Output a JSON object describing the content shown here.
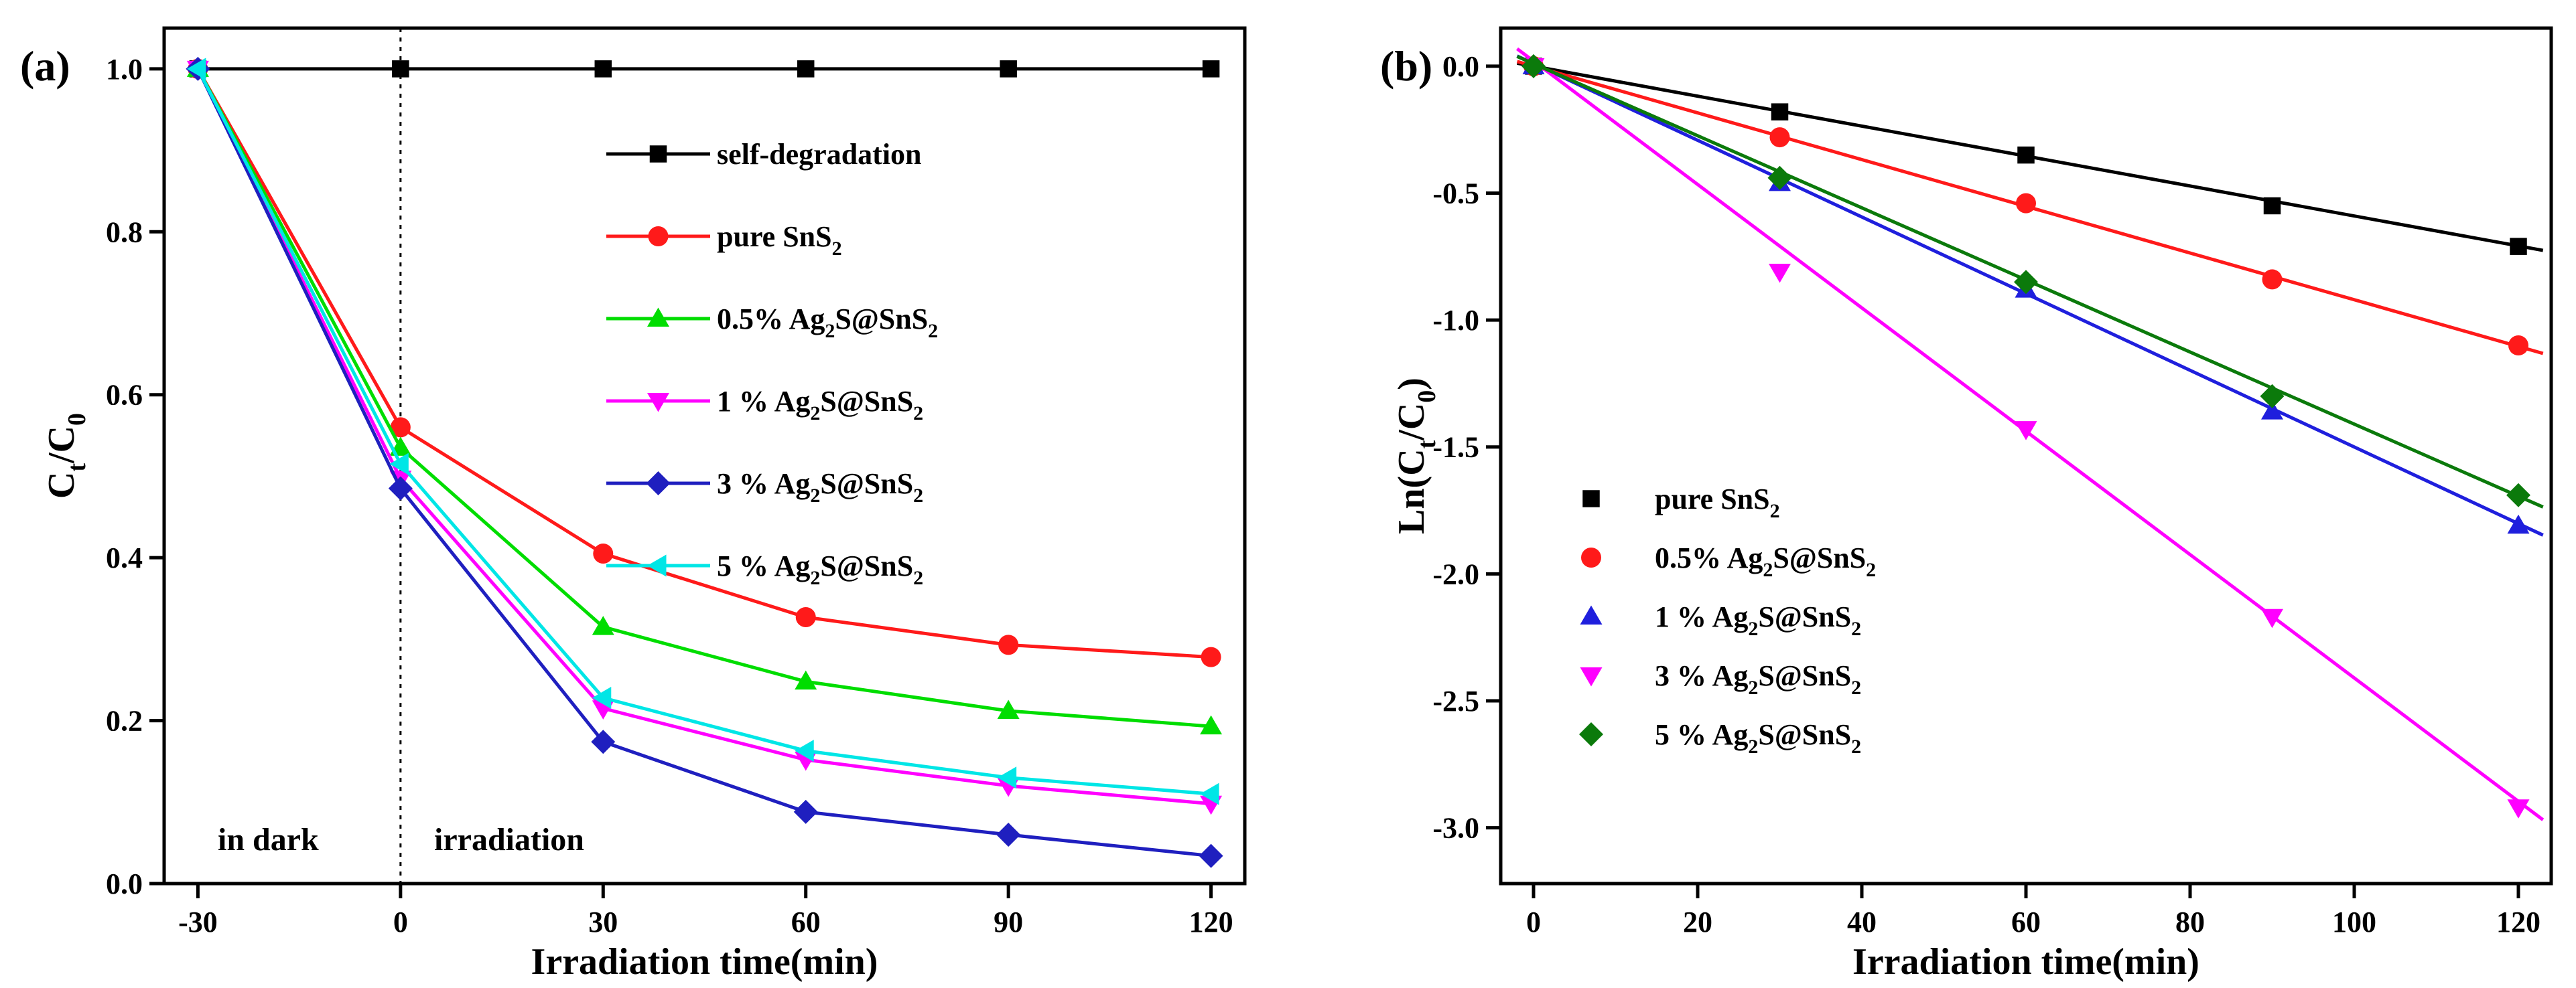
{
  "chart_data": [
    {
      "type": "line",
      "panel_label": "(a)",
      "xlabel": "Irradiation time(min)",
      "ylabel": {
        "main": "C",
        "sub1": "t",
        "mid": "/C",
        "sub2": "0"
      },
      "xlim": [
        -35,
        125
      ],
      "ylim": [
        0.0,
        1.05
      ],
      "xticks": [
        -30,
        0,
        30,
        60,
        90,
        120
      ],
      "yticks": [
        0.0,
        0.2,
        0.4,
        0.6,
        0.8,
        1.0
      ],
      "x": [
        -30,
        0,
        30,
        60,
        90,
        120
      ],
      "annotations": [
        {
          "id": "dark",
          "text": "in dark"
        },
        {
          "id": "irr",
          "text": "irradiation"
        }
      ],
      "legend_position": "upper-right",
      "series": [
        {
          "name": "self-degradation",
          "marker": "square",
          "color": "#000000",
          "values": [
            1.0,
            1.0,
            1.0,
            1.0,
            1.0,
            1.0
          ],
          "legend": {
            "pre": "self-degradation",
            "sub1": "",
            "mid": "",
            "sub2": ""
          }
        },
        {
          "name": "pure SnS2",
          "marker": "circle",
          "color": "#ff1a1a",
          "values": [
            1.0,
            0.56,
            0.405,
            0.327,
            0.293,
            0.278
          ],
          "legend": {
            "pre": "pure SnS",
            "sub1": "2",
            "mid": "",
            "sub2": ""
          }
        },
        {
          "name": "0.5% Ag2S@SnS2",
          "marker": "triangle-up",
          "color": "#00dd00",
          "values": [
            1.0,
            0.535,
            0.315,
            0.248,
            0.212,
            0.193
          ],
          "legend": {
            "pre": "0.5% Ag",
            "sub1": "2",
            "mid": "S@SnS",
            "sub2": "2"
          }
        },
        {
          "name": "1 % Ag2S@SnS2",
          "marker": "triangle-down",
          "color": "#ff00ff",
          "values": [
            1.0,
            0.497,
            0.215,
            0.152,
            0.12,
            0.098
          ],
          "legend": {
            "pre": "1 %  Ag",
            "sub1": "2",
            "mid": "S@SnS",
            "sub2": "2"
          }
        },
        {
          "name": "3 % Ag2S@SnS2",
          "marker": "diamond",
          "color": "#1f1fbf",
          "values": [
            1.0,
            0.485,
            0.174,
            0.088,
            0.06,
            0.034
          ],
          "legend": {
            "pre": "3 %  Ag",
            "sub1": "2",
            "mid": "S@SnS",
            "sub2": "2"
          }
        },
        {
          "name": "5 % Ag2S@SnS2",
          "marker": "triangle-left",
          "color": "#00e6e6",
          "values": [
            1.0,
            0.515,
            0.228,
            0.163,
            0.13,
            0.11
          ],
          "legend": {
            "pre": "5 %  Ag",
            "sub1": "2",
            "mid": "S@SnS",
            "sub2": "2"
          }
        }
      ]
    },
    {
      "type": "scatter",
      "panel_label": "(b)",
      "xlabel": "Irradiation time(min)",
      "ylabel": {
        "main": "Ln(C",
        "sub1": "t",
        "mid": "/C",
        "sub2": "0",
        "post": ")"
      },
      "xlim": [
        -4,
        124
      ],
      "ylim": [
        -3.22,
        0.15
      ],
      "xticks": [
        0,
        20,
        40,
        60,
        80,
        100,
        120
      ],
      "yticks": [
        0.0,
        -0.5,
        -1.0,
        -1.5,
        -2.0,
        -2.5,
        -3.0
      ],
      "x": [
        0,
        30,
        60,
        90,
        120
      ],
      "legend_position": "lower-left",
      "series": [
        {
          "name": "pure SnS2",
          "marker": "square",
          "color": "#000000",
          "values": [
            0.0,
            -0.18,
            -0.35,
            -0.55,
            -0.71
          ],
          "fit": {
            "slope": -0.0059,
            "intercept": 0.0
          },
          "legend": {
            "pre": "pure SnS",
            "sub1": "2",
            "mid": "",
            "sub2": ""
          }
        },
        {
          "name": "0.5% Ag2S@SnS2",
          "marker": "circle",
          "color": "#ff1a1a",
          "values": [
            0.0,
            -0.28,
            -0.54,
            -0.84,
            -1.1
          ],
          "fit": {
            "slope": -0.0092,
            "intercept": 0.0
          },
          "legend": {
            "pre": "0.5% Ag",
            "sub1": "2",
            "mid": "S@SnS",
            "sub2": "2"
          }
        },
        {
          "name": "1 % Ag2S@SnS2",
          "marker": "triangle-up",
          "color": "#1f1fdd",
          "values": [
            0.0,
            -0.46,
            -0.88,
            -1.36,
            -1.81
          ],
          "fit": {
            "slope": -0.0151,
            "intercept": 0.01
          },
          "legend": {
            "pre": "1 %  Ag",
            "sub1": "2",
            "mid": "S@SnS",
            "sub2": "2"
          }
        },
        {
          "name": "3 % Ag2S@SnS2",
          "marker": "triangle-down",
          "color": "#ff00ff",
          "values": [
            0.0,
            -0.81,
            -1.43,
            -2.17,
            -2.92
          ],
          "fit": {
            "slope": -0.0243,
            "intercept": 0.02
          },
          "legend": {
            "pre": "3 %  Ag",
            "sub1": "2",
            "mid": "S@SnS",
            "sub2": "2"
          }
        },
        {
          "name": "5 % Ag2S@SnS2",
          "marker": "diamond",
          "color": "#0b7a0b",
          "values": [
            0.0,
            -0.44,
            -0.85,
            -1.3,
            -1.69
          ],
          "fit": {
            "slope": -0.0142,
            "intercept": 0.01
          },
          "legend": {
            "pre": "5 %  Ag",
            "sub1": "2",
            "mid": "S@SnS",
            "sub2": "2"
          }
        }
      ]
    }
  ]
}
